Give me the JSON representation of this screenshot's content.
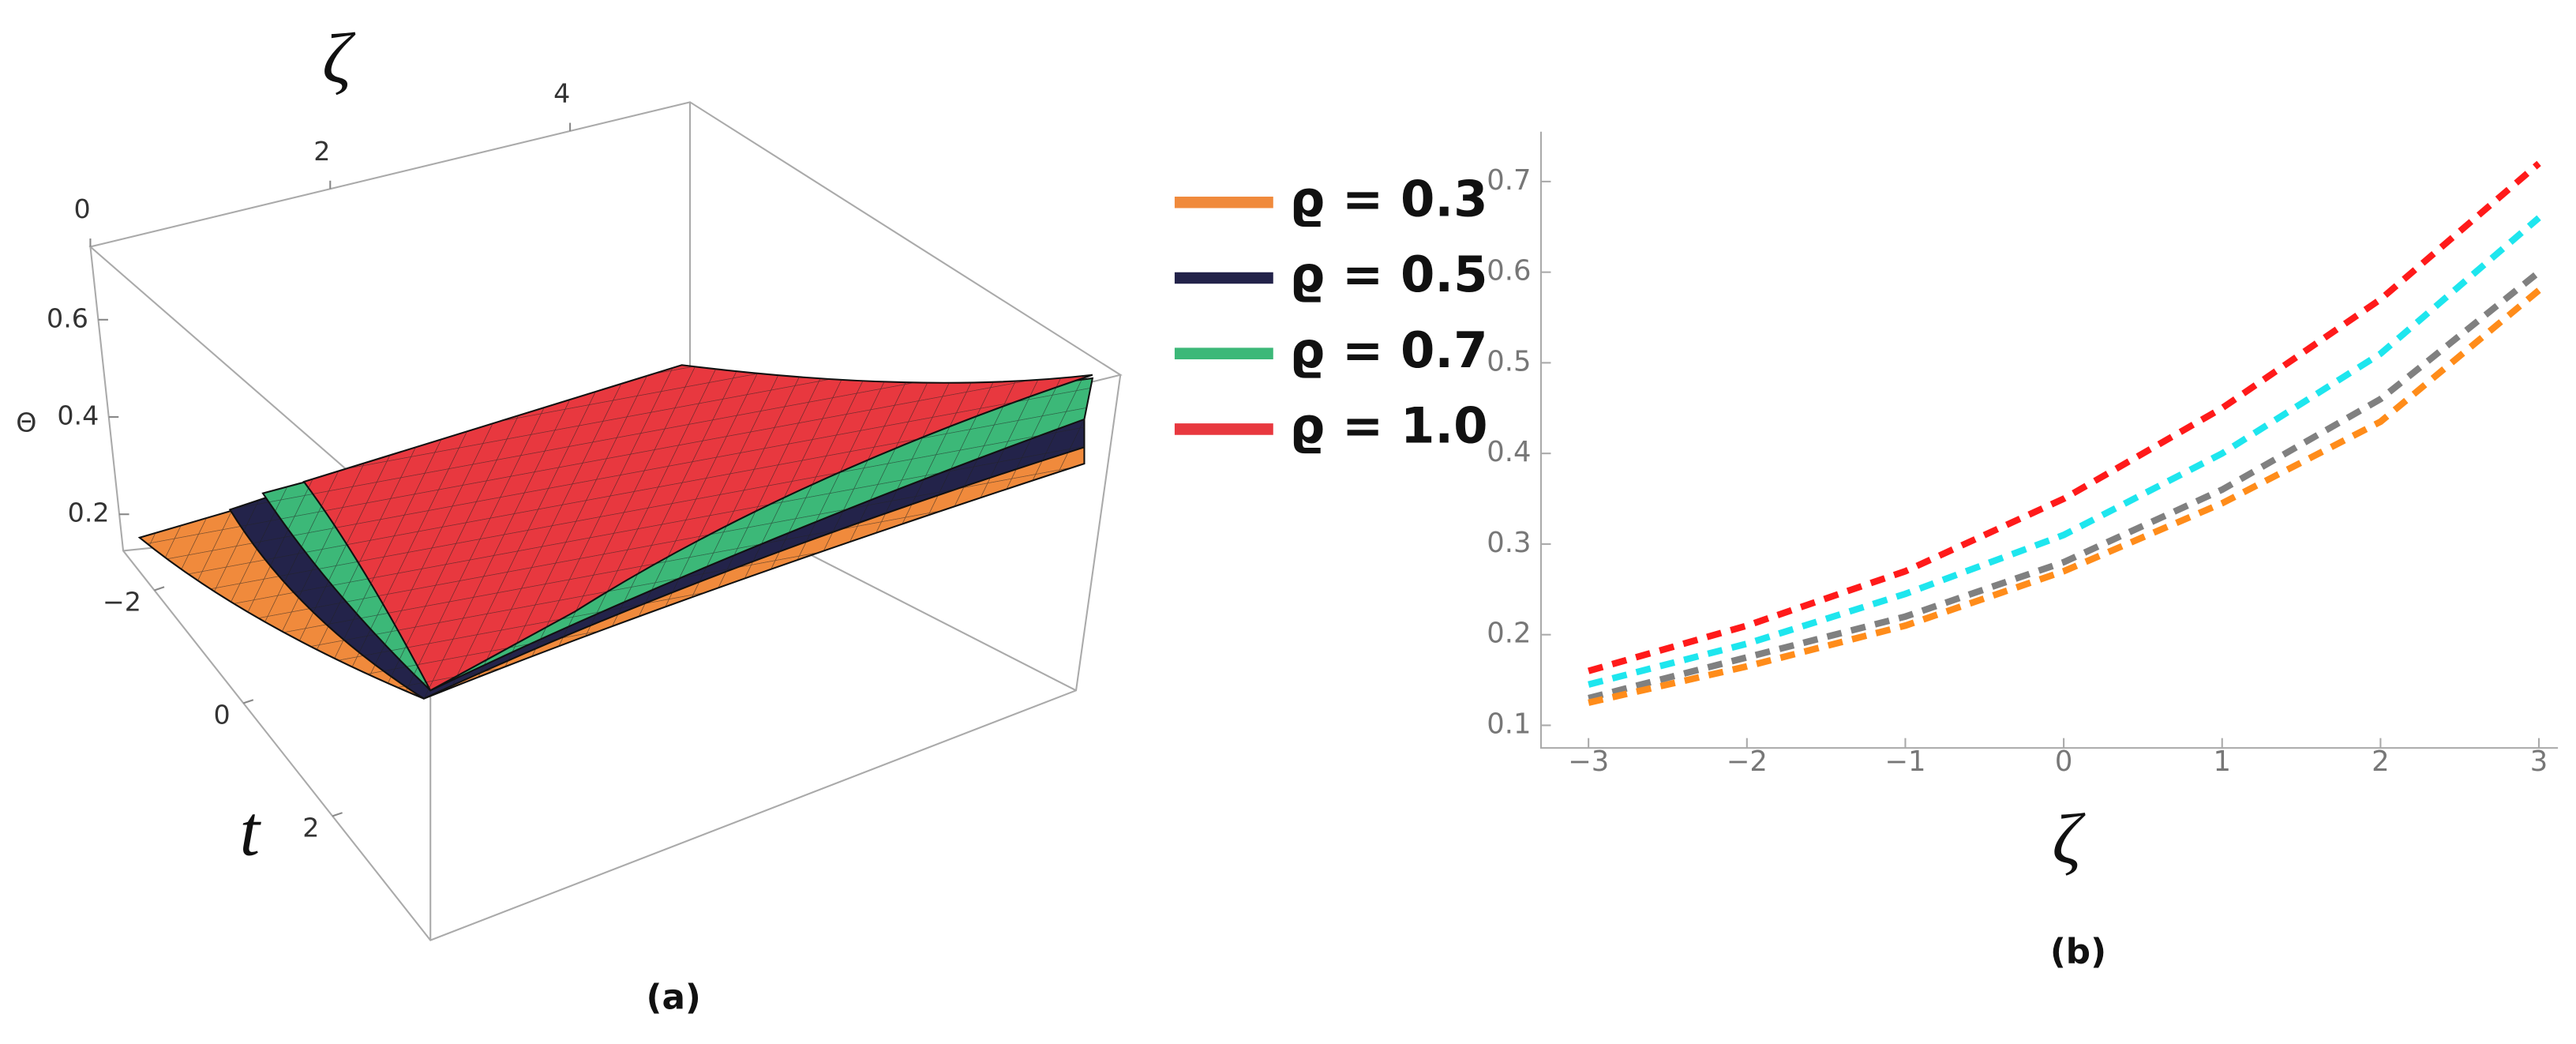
{
  "chart_data": [
    {
      "type": "surface3d",
      "caption": "(a)",
      "x_label": "t",
      "y_label": "ζ",
      "z_label": "Θ",
      "xlim": [
        -2.7,
        4.2
      ],
      "xticks": [
        {
          "value": -2,
          "label": "−2"
        },
        0,
        2
      ],
      "ylim": [
        0,
        5
      ],
      "yticks": [
        0,
        2,
        4
      ],
      "zlim": [
        0.125,
        0.75
      ],
      "zticks": [
        0.2,
        0.4,
        0.6
      ],
      "series": [
        {
          "name": "ϱ = 0.3",
          "color": "#f08a3c"
        },
        {
          "name": "ϱ = 0.5",
          "color": "#23234a"
        },
        {
          "name": "ϱ = 0.7",
          "color": "#3cb878"
        },
        {
          "name": "ϱ = 1.0",
          "color": "#e8383f"
        }
      ]
    },
    {
      "type": "line",
      "caption": "(b)",
      "x_label": "ζ",
      "dashed": true,
      "x": [
        -3,
        -2,
        -1,
        0,
        1,
        2,
        3
      ],
      "series": [
        {
          "color": "#ff1a1a",
          "values": [
            0.16,
            0.21,
            0.27,
            0.35,
            0.45,
            0.57,
            0.72
          ]
        },
        {
          "color": "#1ee6ee",
          "values": [
            0.145,
            0.19,
            0.245,
            0.31,
            0.4,
            0.51,
            0.66
          ]
        },
        {
          "color": "#808080",
          "values": [
            0.13,
            0.175,
            0.22,
            0.28,
            0.36,
            0.46,
            0.6
          ]
        },
        {
          "color": "#ff8c1a",
          "values": [
            0.125,
            0.165,
            0.21,
            0.27,
            0.345,
            0.435,
            0.58
          ]
        }
      ],
      "xlim": [
        -3.3,
        3.12
      ],
      "xticks": [
        {
          "value": -3,
          "label": "−3"
        },
        {
          "value": -2,
          "label": "−2"
        },
        {
          "value": -1,
          "label": "−1"
        },
        0,
        1,
        2,
        3
      ],
      "ylim": [
        0.075,
        0.755
      ],
      "yticks": [
        0.1,
        0.2,
        0.3,
        0.4,
        0.5,
        0.6,
        0.7
      ]
    }
  ]
}
